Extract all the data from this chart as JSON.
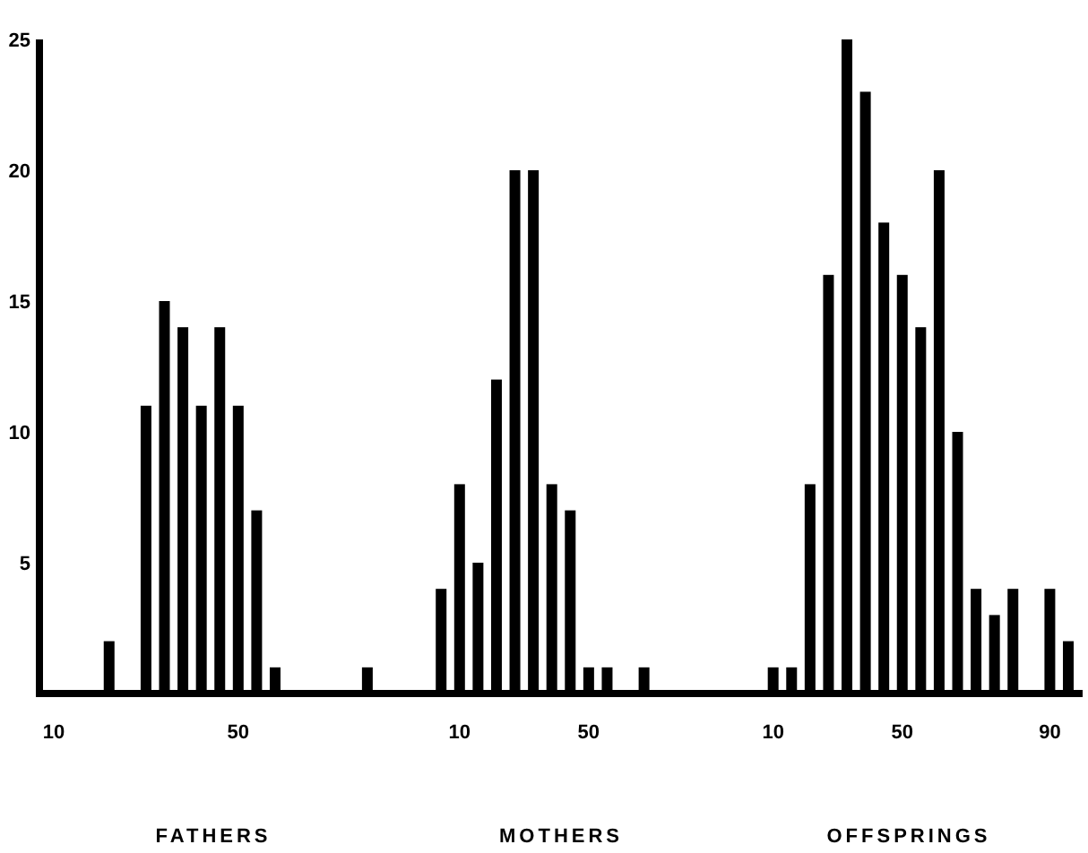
{
  "chart_data": {
    "type": "bar",
    "categories": [
      "10",
      null,
      null,
      null,
      null,
      null,
      null,
      null,
      null,
      null,
      "50",
      null,
      null,
      null,
      null,
      null,
      null,
      null,
      null,
      null,
      null,
      null,
      "10",
      null,
      null,
      null,
      null,
      null,
      null,
      "50",
      null,
      null,
      null,
      null,
      null,
      null,
      null,
      null,
      null,
      "10",
      null,
      null,
      null,
      null,
      null,
      null,
      "50",
      null,
      null,
      null,
      null,
      null,
      null,
      null,
      "90",
      null
    ],
    "values": [
      null,
      null,
      null,
      2,
      null,
      11,
      15,
      14,
      11,
      14,
      11,
      7,
      1,
      null,
      null,
      null,
      null,
      1,
      null,
      null,
      null,
      4,
      8,
      5,
      12,
      20,
      20,
      8,
      7,
      1,
      1,
      null,
      1,
      null,
      null,
      null,
      null,
      null,
      null,
      1,
      1,
      8,
      16,
      25,
      23,
      18,
      16,
      14,
      20,
      10,
      4,
      3,
      4,
      null,
      4,
      2
    ],
    "color": "#000000",
    "ylim": [
      0,
      25
    ],
    "yticks": [
      5,
      10,
      15,
      20,
      25
    ],
    "annotations": [
      "FATHERS",
      "MOTHERS",
      "OFFSPRINGS"
    ]
  }
}
